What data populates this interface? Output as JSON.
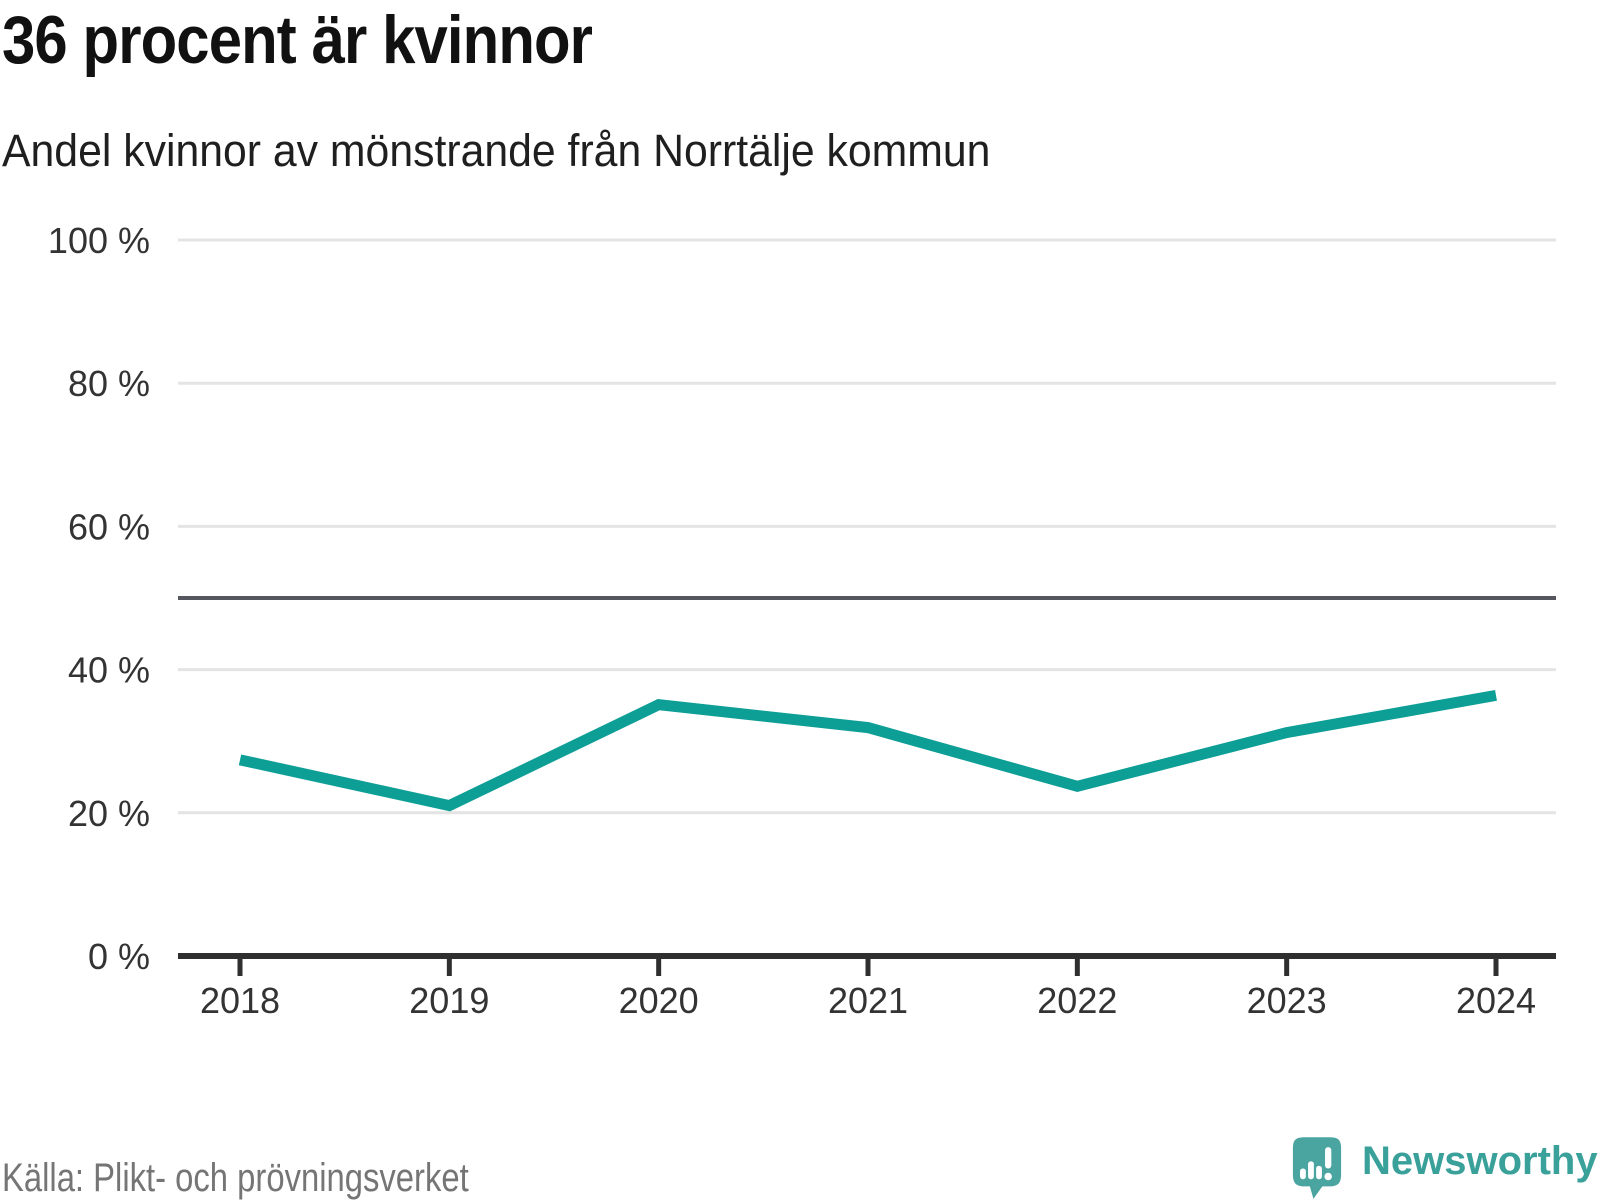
{
  "header": {
    "title": "36 procent är kvinnor",
    "subtitle": "Andel kvinnor av mönstrande från Norrtälje kommun"
  },
  "chart_data": {
    "type": "line",
    "title": "36 procent är kvinnor",
    "subtitle": "Andel kvinnor av mönstrande från Norrtälje kommun",
    "categories": [
      "2018",
      "2019",
      "2020",
      "2021",
      "2022",
      "2023",
      "2024"
    ],
    "series": [
      {
        "name": "Andel kvinnor av mönstrande",
        "values": [
          27.4,
          21.0,
          35.1,
          31.9,
          23.7,
          31.2,
          36.4
        ]
      }
    ],
    "unit": "%",
    "ylim": [
      0,
      100
    ],
    "y_ticks": [
      {
        "value": 0,
        "label": "0 %"
      },
      {
        "value": 20,
        "label": "20 %"
      },
      {
        "value": 40,
        "label": "40 %"
      },
      {
        "value": 60,
        "label": "60 %"
      },
      {
        "value": 80,
        "label": "80 %"
      },
      {
        "value": 100,
        "label": "100 %"
      }
    ],
    "reference_line": {
      "value": 50
    },
    "grid": "horizontal",
    "legend": "none"
  },
  "footer": {
    "source": "Källa: Plikt- och prövningsverket",
    "brand": "Newsworthy"
  },
  "colors": {
    "line": "#0d9e96",
    "reference_line": "#56565e",
    "gridline": "#e4e4e4",
    "axis": "#2f2f2f",
    "tick_label": "#333333",
    "logo": "#4aa5a0",
    "background": "#ffffff"
  }
}
